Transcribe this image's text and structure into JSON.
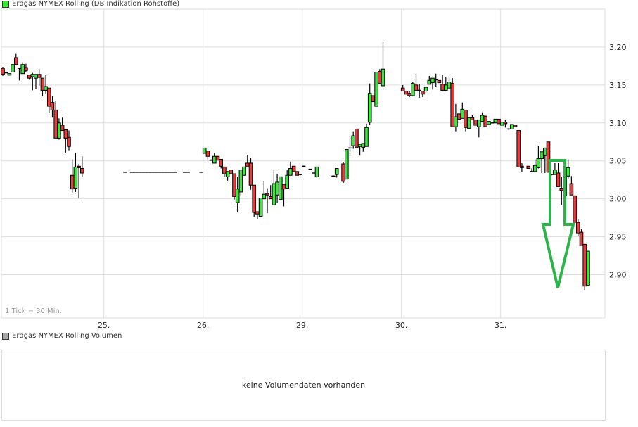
{
  "legend_price": {
    "label": "Erdgas NYMEX Rolling (DB Indikation Rohstoffe)",
    "color": "#3de83d"
  },
  "legend_volume": {
    "label": "Erdgas NYMEX Rolling Volumen",
    "color": "#aaaaaa"
  },
  "tick_info": "1 Tick = 30 Min.",
  "volume_message": "keine Volumendaten vorhanden",
  "colors": {
    "up": "#3de83d",
    "down": "#e83c3c",
    "grid": "#dddddd",
    "arrow": "#2db34a"
  },
  "chart_data": {
    "type": "candlestick",
    "title": "",
    "interval": "30 Min.",
    "ylim": [
      2.843,
      3.25
    ],
    "y_ticks": [
      "3,20",
      "3,15",
      "3,10",
      "3,05",
      "3,00",
      "2,95",
      "2,90"
    ],
    "y_tick_values": [
      3.2,
      3.15,
      3.1,
      3.05,
      3.0,
      2.95,
      2.9
    ],
    "x_ticks": [
      {
        "label": "25.",
        "slot": 31
      },
      {
        "label": "26.",
        "slot": 61
      },
      {
        "label": "29.",
        "slot": 91
      },
      {
        "label": "30.",
        "slot": 121
      },
      {
        "label": "31.",
        "slot": 151
      }
    ],
    "grid": true,
    "annotation": "green down arrow near end",
    "candles": [
      {
        "slot": 0,
        "o": 3.172,
        "h": 3.174,
        "l": 3.162,
        "c": 3.164
      },
      {
        "slot": 1,
        "o": 3.166,
        "h": 3.166,
        "l": 3.166,
        "c": 3.166
      },
      {
        "slot": 2,
        "o": 3.163,
        "h": 3.165,
        "l": 3.163,
        "c": 3.165
      },
      {
        "slot": 3,
        "o": 3.167,
        "h": 3.177,
        "l": 3.167,
        "c": 3.177
      },
      {
        "slot": 4,
        "o": 3.186,
        "h": 3.191,
        "l": 3.177,
        "c": 3.177
      },
      {
        "slot": 5,
        "o": 3.172,
        "h": 3.173,
        "l": 3.156,
        "c": 3.172
      },
      {
        "slot": 6,
        "o": 3.165,
        "h": 3.18,
        "l": 3.165,
        "c": 3.177
      },
      {
        "slot": 7,
        "o": 3.173,
        "h": 3.178,
        "l": 3.167,
        "c": 3.169
      },
      {
        "slot": 8,
        "o": 3.163,
        "h": 3.163,
        "l": 3.157,
        "c": 3.159
      },
      {
        "slot": 9,
        "o": 3.161,
        "h": 3.166,
        "l": 3.143,
        "c": 3.164
      },
      {
        "slot": 10,
        "o": 3.159,
        "h": 3.164,
        "l": 3.145,
        "c": 3.164
      },
      {
        "slot": 11,
        "o": 3.164,
        "h": 3.171,
        "l": 3.149,
        "c": 3.16
      },
      {
        "slot": 12,
        "o": 3.159,
        "h": 3.159,
        "l": 3.135,
        "c": 3.143
      },
      {
        "slot": 13,
        "o": 3.143,
        "h": 3.163,
        "l": 3.139,
        "c": 3.148
      },
      {
        "slot": 14,
        "o": 3.146,
        "h": 3.146,
        "l": 3.113,
        "c": 3.122
      },
      {
        "slot": 15,
        "o": 3.127,
        "h": 3.135,
        "l": 3.107,
        "c": 3.117
      },
      {
        "slot": 16,
        "o": 3.117,
        "h": 3.129,
        "l": 3.08,
        "c": 3.08
      },
      {
        "slot": 17,
        "o": 3.08,
        "h": 3.106,
        "l": 3.078,
        "c": 3.1
      },
      {
        "slot": 18,
        "o": 3.097,
        "h": 3.107,
        "l": 3.09,
        "c": 3.09
      },
      {
        "slot": 19,
        "o": 3.091,
        "h": 3.091,
        "l": 3.061,
        "c": 3.08
      },
      {
        "slot": 20,
        "o": 3.081,
        "h": 3.09,
        "l": 3.064,
        "c": 3.069
      },
      {
        "slot": 21,
        "o": 3.031,
        "h": 3.052,
        "l": 3.007,
        "c": 3.013
      },
      {
        "slot": 22,
        "o": 3.014,
        "h": 3.06,
        "l": 3.009,
        "c": 3.042
      },
      {
        "slot": 23,
        "o": 3.043,
        "h": 3.046,
        "l": 3.001,
        "c": 3.041
      },
      {
        "slot": 24,
        "o": 3.04,
        "h": 3.056,
        "l": 3.029,
        "c": 3.034
      },
      {
        "slot": 37,
        "o": 3.035,
        "h": 3.035,
        "l": 3.035,
        "c": 3.035
      },
      {
        "slot": 39,
        "o": 3.035,
        "h": 3.035,
        "l": 3.035,
        "c": 3.035
      },
      {
        "slot": 40,
        "o": 3.035,
        "h": 3.035,
        "l": 3.035,
        "c": 3.035
      },
      {
        "slot": 41,
        "o": 3.035,
        "h": 3.035,
        "l": 3.035,
        "c": 3.035
      },
      {
        "slot": 42,
        "o": 3.035,
        "h": 3.035,
        "l": 3.035,
        "c": 3.035
      },
      {
        "slot": 43,
        "o": 3.035,
        "h": 3.035,
        "l": 3.035,
        "c": 3.035
      },
      {
        "slot": 44,
        "o": 3.035,
        "h": 3.035,
        "l": 3.035,
        "c": 3.035
      },
      {
        "slot": 45,
        "o": 3.035,
        "h": 3.035,
        "l": 3.035,
        "c": 3.035
      },
      {
        "slot": 46,
        "o": 3.035,
        "h": 3.035,
        "l": 3.035,
        "c": 3.035
      },
      {
        "slot": 47,
        "o": 3.035,
        "h": 3.035,
        "l": 3.035,
        "c": 3.035
      },
      {
        "slot": 48,
        "o": 3.035,
        "h": 3.035,
        "l": 3.035,
        "c": 3.035
      },
      {
        "slot": 49,
        "o": 3.035,
        "h": 3.035,
        "l": 3.035,
        "c": 3.035
      },
      {
        "slot": 50,
        "o": 3.035,
        "h": 3.035,
        "l": 3.035,
        "c": 3.035
      },
      {
        "slot": 51,
        "o": 3.035,
        "h": 3.035,
        "l": 3.035,
        "c": 3.035
      },
      {
        "slot": 52,
        "o": 3.035,
        "h": 3.035,
        "l": 3.035,
        "c": 3.035
      },
      {
        "slot": 55,
        "o": 3.035,
        "h": 3.035,
        "l": 3.035,
        "c": 3.035
      },
      {
        "slot": 56,
        "o": 3.035,
        "h": 3.035,
        "l": 3.035,
        "c": 3.035
      },
      {
        "slot": 60,
        "o": 3.035,
        "h": 3.035,
        "l": 3.035,
        "c": 3.035
      },
      {
        "slot": 61,
        "o": 3.06,
        "h": 3.067,
        "l": 3.06,
        "c": 3.067
      },
      {
        "slot": 62,
        "o": 3.063,
        "h": 3.063,
        "l": 3.052,
        "c": 3.056
      },
      {
        "slot": 63,
        "o": 3.051,
        "h": 3.052,
        "l": 3.05,
        "c": 3.051
      },
      {
        "slot": 64,
        "o": 3.047,
        "h": 3.06,
        "l": 3.047,
        "c": 3.056
      },
      {
        "slot": 65,
        "o": 3.056,
        "h": 3.056,
        "l": 3.051,
        "c": 3.051
      },
      {
        "slot": 66,
        "o": 3.052,
        "h": 3.052,
        "l": 3.04,
        "c": 3.043
      },
      {
        "slot": 67,
        "o": 3.042,
        "h": 3.042,
        "l": 3.029,
        "c": 3.033
      },
      {
        "slot": 68,
        "o": 3.029,
        "h": 3.036,
        "l": 3.024,
        "c": 3.036
      },
      {
        "slot": 69,
        "o": 3.038,
        "h": 3.038,
        "l": 3.033,
        "c": 3.033
      },
      {
        "slot": 70,
        "o": 3.033,
        "h": 3.033,
        "l": 2.999,
        "c": 3.003
      },
      {
        "slot": 71,
        "o": 2.995,
        "h": 3.029,
        "l": 2.982,
        "c": 3.013
      },
      {
        "slot": 72,
        "o": 3.009,
        "h": 3.038,
        "l": 3.003,
        "c": 3.038
      },
      {
        "slot": 73,
        "o": 3.031,
        "h": 3.042,
        "l": 3.031,
        "c": 3.042
      },
      {
        "slot": 74,
        "o": 3.047,
        "h": 3.058,
        "l": 3.043,
        "c": 3.043
      },
      {
        "slot": 75,
        "o": 3.047,
        "h": 3.054,
        "l": 3.012,
        "c": 3.018
      },
      {
        "slot": 76,
        "o": 3.018,
        "h": 3.018,
        "l": 2.976,
        "c": 2.982
      },
      {
        "slot": 77,
        "o": 2.983,
        "h": 2.983,
        "l": 2.973,
        "c": 2.98
      },
      {
        "slot": 78,
        "o": 2.977,
        "h": 3.001,
        "l": 2.977,
        "c": 3.001
      },
      {
        "slot": 79,
        "o": 3.0,
        "h": 3.023,
        "l": 3.0,
        "c": 3.006
      },
      {
        "slot": 80,
        "o": 3.007,
        "h": 3.014,
        "l": 2.981,
        "c": 3.005
      },
      {
        "slot": 81,
        "o": 3.003,
        "h": 3.018,
        "l": 3.0,
        "c": 3.0
      },
      {
        "slot": 82,
        "o": 2.992,
        "h": 3.038,
        "l": 2.992,
        "c": 3.02
      },
      {
        "slot": 83,
        "o": 3.005,
        "h": 3.033,
        "l": 2.995,
        "c": 3.022
      },
      {
        "slot": 84,
        "o": 2.999,
        "h": 3.029,
        "l": 2.999,
        "c": 3.029
      },
      {
        "slot": 85,
        "o": 3.019,
        "h": 3.019,
        "l": 2.99,
        "c": 3.013
      },
      {
        "slot": 86,
        "o": 3.014,
        "h": 3.038,
        "l": 3.014,
        "c": 3.031
      },
      {
        "slot": 87,
        "o": 3.031,
        "h": 3.049,
        "l": 3.031,
        "c": 3.04
      },
      {
        "slot": 88,
        "o": 3.043,
        "h": 3.043,
        "l": 3.036,
        "c": 3.036
      },
      {
        "slot": 89,
        "o": 3.036,
        "h": 3.036,
        "l": 3.031,
        "c": 3.031
      },
      {
        "slot": 90,
        "o": 3.032,
        "h": 3.033,
        "l": 3.031,
        "c": 3.032
      },
      {
        "slot": 91,
        "o": 3.043,
        "h": 3.043,
        "l": 3.043,
        "c": 3.043
      },
      {
        "slot": 93,
        "o": 3.039,
        "h": 3.039,
        "l": 3.039,
        "c": 3.039
      },
      {
        "slot": 94,
        "o": 3.034,
        "h": 3.034,
        "l": 3.034,
        "c": 3.034
      },
      {
        "slot": 95,
        "o": 3.029,
        "h": 3.042,
        "l": 3.028,
        "c": 3.042
      },
      {
        "slot": 100,
        "o": 3.03,
        "h": 3.03,
        "l": 3.03,
        "c": 3.03
      },
      {
        "slot": 101,
        "o": 3.032,
        "h": 3.04,
        "l": 3.028,
        "c": 3.04
      },
      {
        "slot": 103,
        "o": 3.046,
        "h": 3.048,
        "l": 3.021,
        "c": 3.023
      },
      {
        "slot": 104,
        "o": 3.026,
        "h": 3.065,
        "l": 3.026,
        "c": 3.065
      },
      {
        "slot": 105,
        "o": 3.066,
        "h": 3.082,
        "l": 3.056,
        "c": 3.067
      },
      {
        "slot": 106,
        "o": 3.07,
        "h": 3.089,
        "l": 3.066,
        "c": 3.083
      },
      {
        "slot": 107,
        "o": 3.092,
        "h": 3.092,
        "l": 3.068,
        "c": 3.068
      },
      {
        "slot": 108,
        "o": 3.069,
        "h": 3.072,
        "l": 3.057,
        "c": 3.072
      },
      {
        "slot": 109,
        "o": 3.068,
        "h": 3.073,
        "l": 3.062,
        "c": 3.073
      },
      {
        "slot": 110,
        "o": 3.069,
        "h": 3.099,
        "l": 3.069,
        "c": 3.094
      },
      {
        "slot": 111,
        "o": 3.101,
        "h": 3.152,
        "l": 3.097,
        "c": 3.139
      },
      {
        "slot": 112,
        "o": 3.136,
        "h": 3.136,
        "l": 3.128,
        "c": 3.128
      },
      {
        "slot": 113,
        "o": 3.122,
        "h": 3.167,
        "l": 3.122,
        "c": 3.167
      },
      {
        "slot": 114,
        "o": 3.168,
        "h": 3.171,
        "l": 3.152,
        "c": 3.152
      },
      {
        "slot": 115,
        "o": 3.149,
        "h": 3.207,
        "l": 3.147,
        "c": 3.171
      },
      {
        "slot": 121,
        "o": 3.146,
        "h": 3.15,
        "l": 3.142,
        "c": 3.142
      },
      {
        "slot": 122,
        "o": 3.142,
        "h": 3.142,
        "l": 3.138,
        "c": 3.138
      },
      {
        "slot": 123,
        "o": 3.139,
        "h": 3.142,
        "l": 3.134,
        "c": 3.136
      },
      {
        "slot": 124,
        "o": 3.136,
        "h": 3.154,
        "l": 3.135,
        "c": 3.152
      },
      {
        "slot": 125,
        "o": 3.15,
        "h": 3.165,
        "l": 3.143,
        "c": 3.143
      },
      {
        "slot": 126,
        "o": 3.143,
        "h": 3.151,
        "l": 3.133,
        "c": 3.143
      },
      {
        "slot": 127,
        "o": 3.142,
        "h": 3.142,
        "l": 3.134,
        "c": 3.138
      },
      {
        "slot": 128,
        "o": 3.142,
        "h": 3.147,
        "l": 3.14,
        "c": 3.147
      },
      {
        "slot": 129,
        "o": 3.151,
        "h": 3.162,
        "l": 3.151,
        "c": 3.156
      },
      {
        "slot": 130,
        "o": 3.153,
        "h": 3.159,
        "l": 3.144,
        "c": 3.159
      },
      {
        "slot": 131,
        "o": 3.157,
        "h": 3.165,
        "l": 3.148,
        "c": 3.157
      },
      {
        "slot": 132,
        "o": 3.156,
        "h": 3.156,
        "l": 3.153,
        "c": 3.153
      },
      {
        "slot": 133,
        "o": 3.151,
        "h": 3.163,
        "l": 3.143,
        "c": 3.143
      },
      {
        "slot": 134,
        "o": 3.143,
        "h": 3.16,
        "l": 3.143,
        "c": 3.15
      },
      {
        "slot": 135,
        "o": 3.146,
        "h": 3.16,
        "l": 3.146,
        "c": 3.154
      },
      {
        "slot": 136,
        "o": 3.152,
        "h": 3.159,
        "l": 3.095,
        "c": 3.095
      },
      {
        "slot": 137,
        "o": 3.095,
        "h": 3.125,
        "l": 3.089,
        "c": 3.108
      },
      {
        "slot": 138,
        "o": 3.112,
        "h": 3.112,
        "l": 3.105,
        "c": 3.105
      },
      {
        "slot": 139,
        "o": 3.106,
        "h": 3.127,
        "l": 3.106,
        "c": 3.118
      },
      {
        "slot": 140,
        "o": 3.117,
        "h": 3.117,
        "l": 3.089,
        "c": 3.094
      },
      {
        "slot": 141,
        "o": 3.093,
        "h": 3.107,
        "l": 3.093,
        "c": 3.107
      },
      {
        "slot": 142,
        "o": 3.107,
        "h": 3.11,
        "l": 3.104,
        "c": 3.104
      },
      {
        "slot": 143,
        "o": 3.104,
        "h": 3.104,
        "l": 3.097,
        "c": 3.097
      },
      {
        "slot": 144,
        "o": 3.095,
        "h": 3.104,
        "l": 3.081,
        "c": 3.104
      },
      {
        "slot": 145,
        "o": 3.102,
        "h": 3.114,
        "l": 3.102,
        "c": 3.11
      },
      {
        "slot": 146,
        "o": 3.109,
        "h": 3.109,
        "l": 3.095,
        "c": 3.095
      },
      {
        "slot": 147,
        "o": 3.098,
        "h": 3.102,
        "l": 3.098,
        "c": 3.102
      },
      {
        "slot": 148,
        "o": 3.1,
        "h": 3.101,
        "l": 3.099,
        "c": 3.1
      },
      {
        "slot": 149,
        "o": 3.1,
        "h": 3.105,
        "l": 3.1,
        "c": 3.105
      },
      {
        "slot": 150,
        "o": 3.105,
        "h": 3.105,
        "l": 3.099,
        "c": 3.099
      },
      {
        "slot": 151,
        "o": 3.097,
        "h": 3.101,
        "l": 3.097,
        "c": 3.101
      },
      {
        "slot": 152,
        "o": 3.101,
        "h": 3.104,
        "l": 3.094,
        "c": 3.099
      },
      {
        "slot": 153,
        "o": 3.092,
        "h": 3.093,
        "l": 3.091,
        "c": 3.092
      },
      {
        "slot": 154,
        "o": 3.092,
        "h": 3.098,
        "l": 3.092,
        "c": 3.098
      },
      {
        "slot": 155,
        "o": 3.097,
        "h": 3.097,
        "l": 3.095,
        "c": 3.095
      },
      {
        "slot": 156,
        "o": 3.09,
        "h": 3.09,
        "l": 3.042,
        "c": 3.042
      },
      {
        "slot": 157,
        "o": 3.043,
        "h": 3.047,
        "l": 3.035,
        "c": 3.041
      },
      {
        "slot": 159,
        "o": 3.043,
        "h": 3.043,
        "l": 3.04,
        "c": 3.04
      },
      {
        "slot": 160,
        "o": 3.036,
        "h": 3.04,
        "l": 3.035,
        "c": 3.036
      },
      {
        "slot": 161,
        "o": 3.036,
        "h": 3.052,
        "l": 3.036,
        "c": 3.044
      },
      {
        "slot": 162,
        "o": 3.041,
        "h": 3.07,
        "l": 3.04,
        "c": 3.053
      },
      {
        "slot": 163,
        "o": 3.053,
        "h": 3.062,
        "l": 3.034,
        "c": 3.062
      },
      {
        "slot": 164,
        "o": 3.057,
        "h": 3.067,
        "l": 3.034,
        "c": 3.067
      },
      {
        "slot": 165,
        "o": 3.075,
        "h": 3.075,
        "l": 3.035,
        "c": 3.035
      },
      {
        "slot": 166,
        "o": 3.032,
        "h": 3.033,
        "l": 3.031,
        "c": 3.032
      },
      {
        "slot": 167,
        "o": 3.032,
        "h": 3.047,
        "l": 3.032,
        "c": 3.038
      },
      {
        "slot": 168,
        "o": 3.034,
        "h": 3.047,
        "l": 3.016,
        "c": 3.016
      },
      {
        "slot": 169,
        "o": 3.014,
        "h": 3.029,
        "l": 2.992,
        "c": 3.011
      },
      {
        "slot": 170,
        "o": 3.004,
        "h": 3.029,
        "l": 3.004,
        "c": 3.029
      },
      {
        "slot": 171,
        "o": 3.03,
        "h": 3.052,
        "l": 3.026,
        "c": 3.041
      },
      {
        "slot": 172,
        "o": 3.02,
        "h": 3.03,
        "l": 3.005,
        "c": 3.005
      },
      {
        "slot": 173,
        "o": 3.004,
        "h": 3.004,
        "l": 2.969,
        "c": 2.969
      },
      {
        "slot": 174,
        "o": 2.969,
        "h": 2.973,
        "l": 2.951,
        "c": 2.955
      },
      {
        "slot": 175,
        "o": 2.956,
        "h": 2.96,
        "l": 2.938,
        "c": 2.938
      },
      {
        "slot": 176,
        "o": 2.94,
        "h": 2.94,
        "l": 2.88,
        "c": 2.885
      },
      {
        "slot": 177,
        "o": 2.886,
        "h": 2.931,
        "l": 2.886,
        "c": 2.931
      }
    ]
  }
}
